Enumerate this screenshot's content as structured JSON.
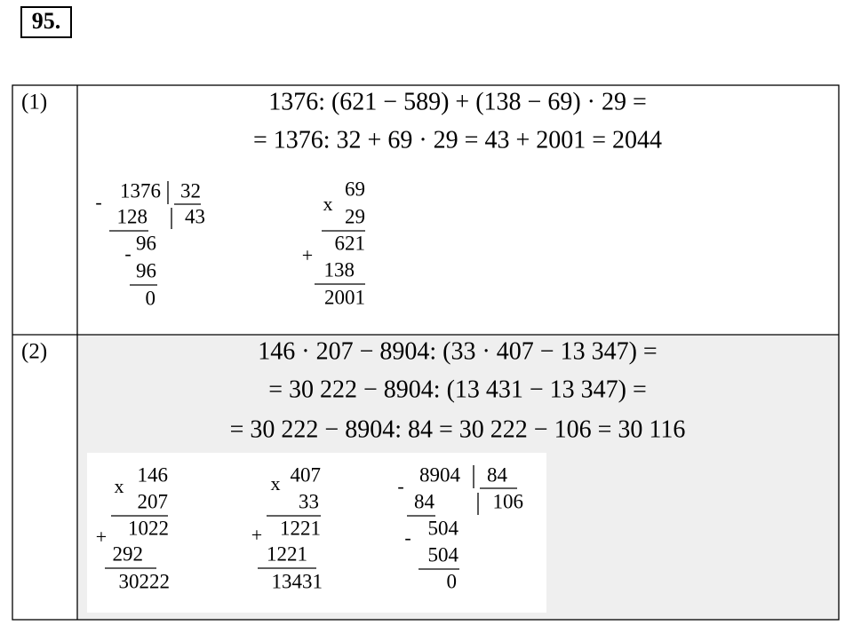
{
  "header": {
    "number": "95."
  },
  "rows": [
    {
      "label": "(1)",
      "lines": [
        "1376: (621 − 589) + (138 − 69) · 29 =",
        "= 1376: 32 + 69 · 29 = 43 + 2001 = 2044"
      ],
      "work": [
        "-",
        "1376",
        "32",
        "128",
        "43",
        "-",
        "96",
        "96",
        "0",
        "x",
        "69",
        "29",
        "621",
        "+",
        "138",
        "2001"
      ]
    },
    {
      "label": "(2)",
      "lines": [
        "146 · 207 − 8904: (33 · 407 − 13 347) =",
        "= 30 222 − 8904: (13 431 − 13 347) =",
        "= 30 222 − 8904: 84 = 30 222 − 106 = 30 116"
      ],
      "work": [
        "x",
        "146",
        "207",
        "1022",
        "+",
        "292",
        "30222",
        "x",
        "407",
        "33",
        "+",
        "1221",
        "1221",
        "13431",
        "-",
        "8904",
        "84",
        "84",
        "106",
        "-",
        "504",
        "504",
        "0"
      ]
    }
  ]
}
